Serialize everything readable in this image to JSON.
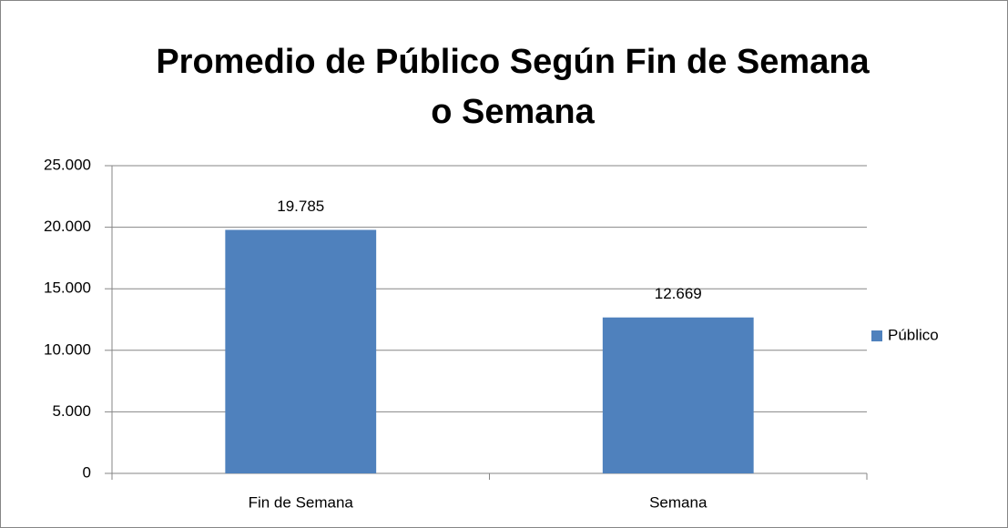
{
  "chart_data": {
    "type": "bar",
    "title": [
      "Promedio de Público Según Fin de Semana",
      "o Semana"
    ],
    "categories": [
      "Fin de Semana",
      "Semana"
    ],
    "series": [
      {
        "name": "Público",
        "color": "#4f81bd",
        "values": [
          19785,
          12669
        ],
        "value_labels": [
          "19.785",
          "12.669"
        ]
      }
    ],
    "ylim": [
      0,
      25000
    ],
    "yticks": [
      0,
      {
        "value": 5000,
        "label": "5.000"
      },
      {
        "value": 10000,
        "label": "10.000"
      },
      {
        "value": 15000,
        "label": "15.000"
      },
      {
        "value": 20000,
        "label": "20.000"
      },
      {
        "value": 25000,
        "label": "25.000"
      }
    ],
    "grid": true,
    "legend": "right"
  }
}
